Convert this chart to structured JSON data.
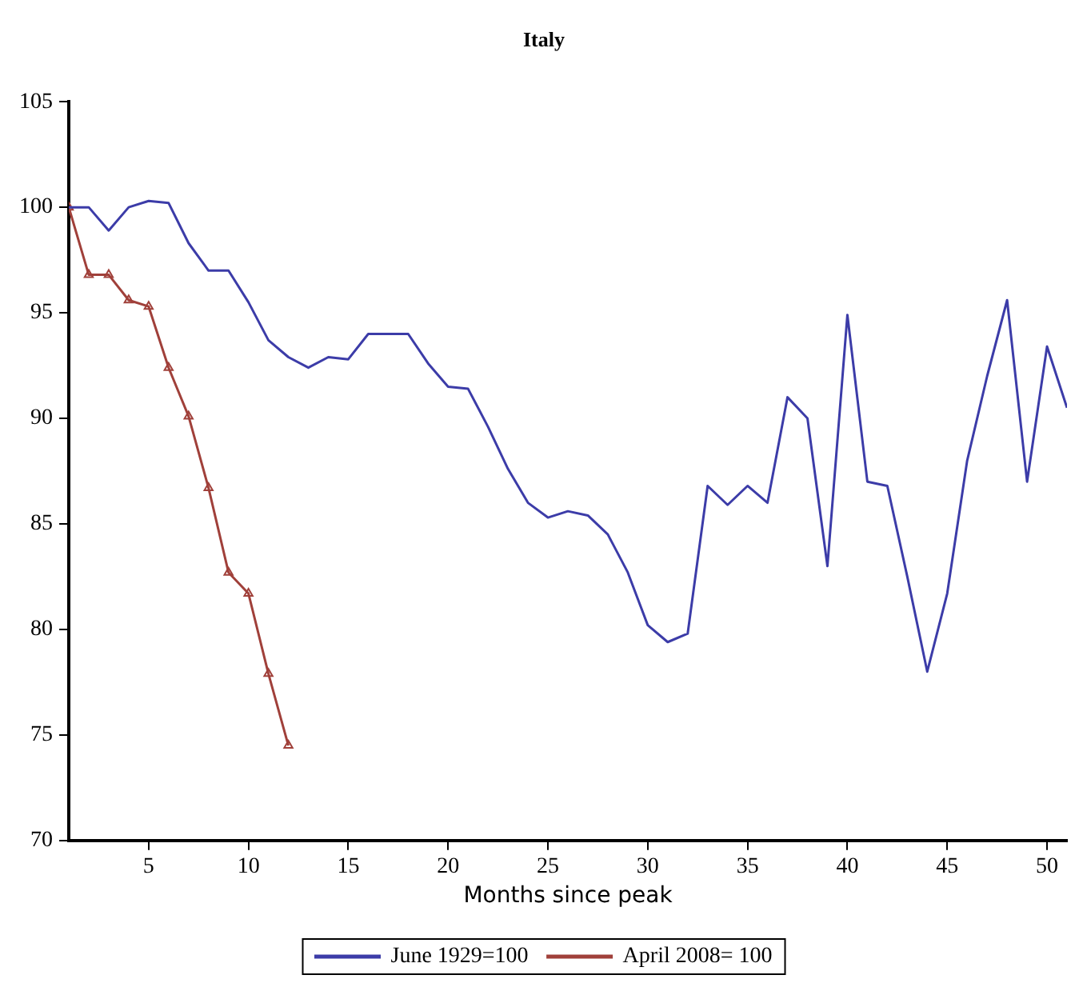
{
  "chart_data": {
    "type": "line",
    "title": "Italy",
    "xlabel": "Months since peak",
    "xlim": [
      1,
      51
    ],
    "xticks": [
      5,
      10,
      15,
      20,
      25,
      30,
      35,
      40,
      45,
      50
    ],
    "ylim": [
      70,
      105
    ],
    "yticks": [
      70,
      75,
      80,
      85,
      90,
      95,
      100,
      105
    ],
    "grid": false,
    "legend": "bottom",
    "line_style": "solid",
    "series": [
      {
        "name": "June 1929=100",
        "color": "#3c3ca8",
        "marker": "none",
        "x": [
          1,
          2,
          3,
          4,
          5,
          6,
          7,
          8,
          9,
          10,
          11,
          12,
          13,
          14,
          15,
          16,
          17,
          18,
          19,
          20,
          21,
          22,
          23,
          24,
          25,
          26,
          27,
          28,
          29,
          30,
          31,
          32,
          33,
          34,
          35,
          36,
          37,
          38,
          39,
          40,
          41,
          42,
          43,
          44,
          45,
          46,
          47,
          48,
          49,
          50,
          51
        ],
        "values": [
          100,
          100,
          98.9,
          100,
          100.3,
          100.2,
          98.3,
          97,
          97,
          95.5,
          93.7,
          92.9,
          92.4,
          92.9,
          92.8,
          94,
          94,
          94,
          92.6,
          91.5,
          91.4,
          89.6,
          87.6,
          86,
          85.3,
          85.6,
          85.4,
          84.5,
          82.7,
          80.2,
          79.4,
          79.8,
          86.8,
          85.9,
          86.8,
          86,
          91,
          90,
          83,
          94.9,
          87,
          86.8,
          82.5,
          78,
          81.7,
          88,
          92,
          95.6,
          87,
          93.4,
          90.5
        ]
      },
      {
        "name": "April 2008= 100",
        "color": "#a0403a",
        "marker": "triangle",
        "x": [
          1,
          2,
          3,
          4,
          5,
          6,
          7,
          8,
          9,
          10,
          11,
          12
        ],
        "values": [
          100,
          96.8,
          96.8,
          95.6,
          95.3,
          92.4,
          90.1,
          86.7,
          82.7,
          81.7,
          77.9,
          74.5
        ]
      }
    ]
  }
}
